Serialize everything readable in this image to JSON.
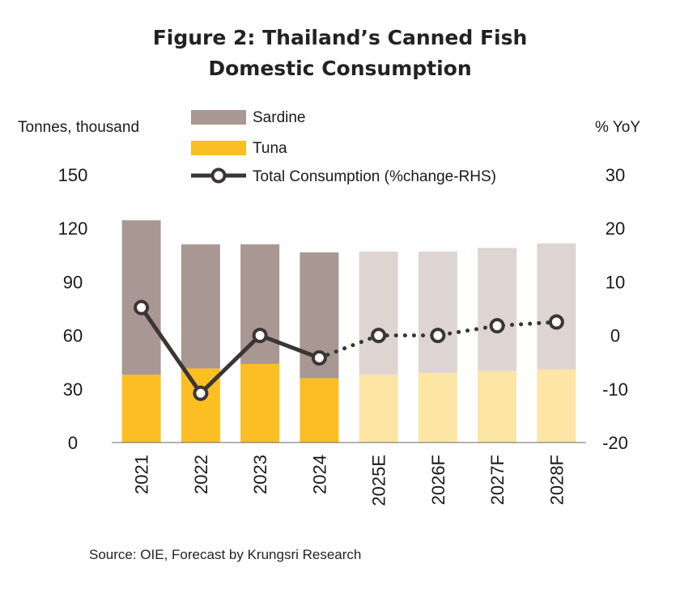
{
  "chart_data": {
    "type": "bar",
    "title_line1": "Figure 2: Thailand’s Canned Fish",
    "title_line2": "Domestic Consumption",
    "categories": [
      "2021",
      "2022",
      "2023",
      "2024",
      "2025E",
      "2026F",
      "2027F",
      "2028F"
    ],
    "forecast_from_index": 4,
    "stacked": true,
    "series": [
      {
        "name": "Tuna",
        "axis": "left",
        "values": [
          38,
          41.5,
          44,
          36,
          38,
          39,
          40,
          41
        ]
      },
      {
        "name": "Sardine",
        "axis": "left",
        "values": [
          86.5,
          69.5,
          67,
          70.5,
          69,
          68,
          69,
          70.5
        ]
      },
      {
        "name": "Total Consumption (%change-RHS)",
        "axis": "right",
        "type": "line",
        "values": [
          5.2,
          -10.8,
          0,
          -4.2,
          0,
          0,
          1.8,
          2.5
        ],
        "solid_until_index": 3
      }
    ],
    "ylabel": "Tonnes, thousand",
    "ylabel_right": "% YoY",
    "ylim": [
      0,
      150
    ],
    "yticks": [
      "0",
      "30",
      "60",
      "90",
      "120",
      "150"
    ],
    "ylim_right": [
      -20,
      30
    ],
    "yticks_right": [
      "-20",
      "-10",
      "0",
      "10",
      "20",
      "30"
    ],
    "legend_position": "top-center",
    "legend": [
      "Sardine",
      "Tuna",
      "Total Consumption (%change-RHS)"
    ],
    "colors": {
      "sardine": "#a99793",
      "tuna": "#fbbf24",
      "sardine_forecast": "#ded5d3",
      "tuna_forecast": "#fde5a5",
      "line": "#3b3535"
    }
  },
  "source": "Source: OIE, Forecast by Krungsri Research"
}
